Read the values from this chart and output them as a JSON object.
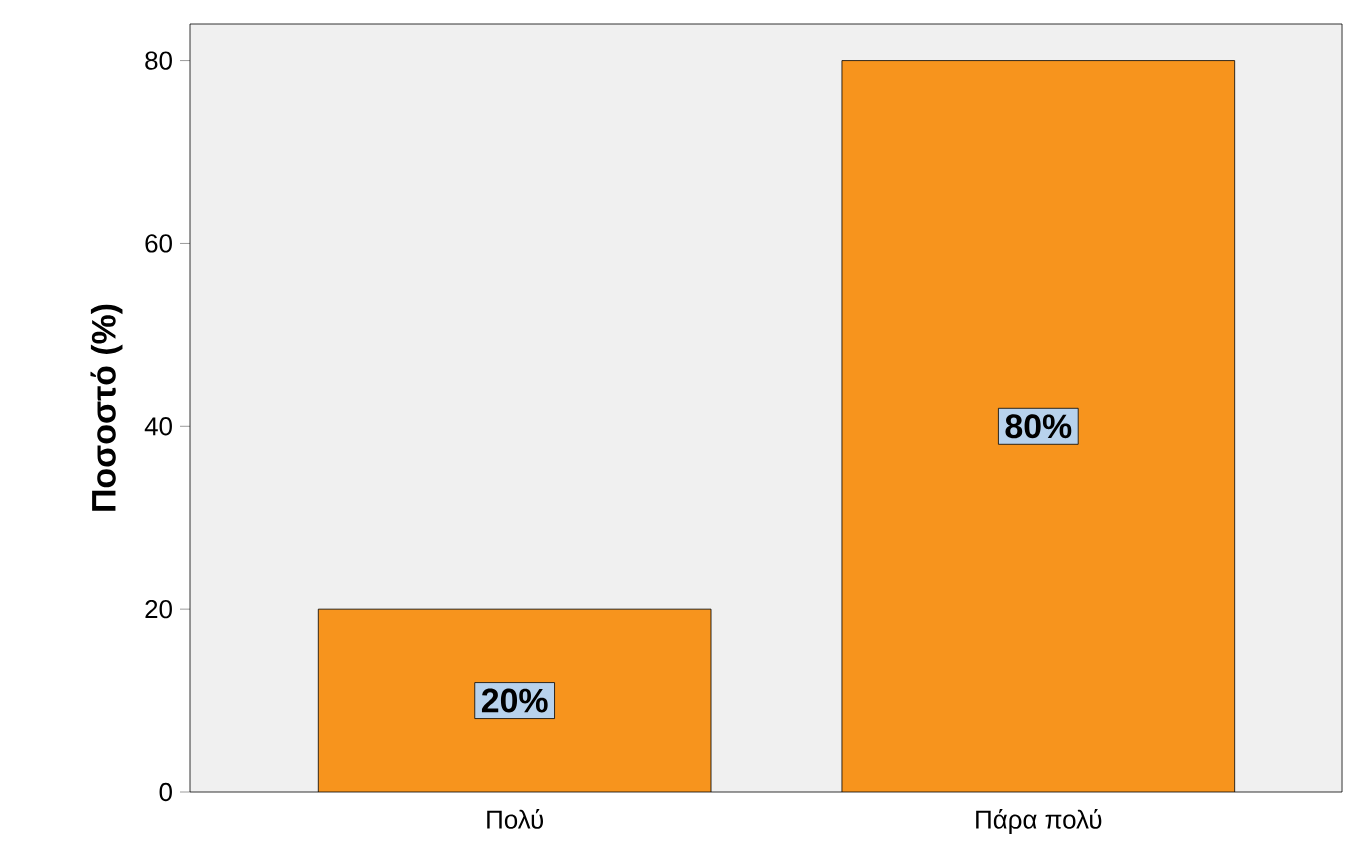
{
  "chart_data": {
    "type": "bar",
    "ylabel": "Ποσοστό (%)",
    "categories": [
      "Πολύ",
      "Πάρα πολύ"
    ],
    "values": [
      20,
      80
    ],
    "color": "#f7941d",
    "value_labels": [
      "20%",
      "80%"
    ],
    "ylim": [
      0,
      84
    ],
    "yticks": [
      0,
      20,
      40,
      60,
      80
    ],
    "grid": false
  }
}
